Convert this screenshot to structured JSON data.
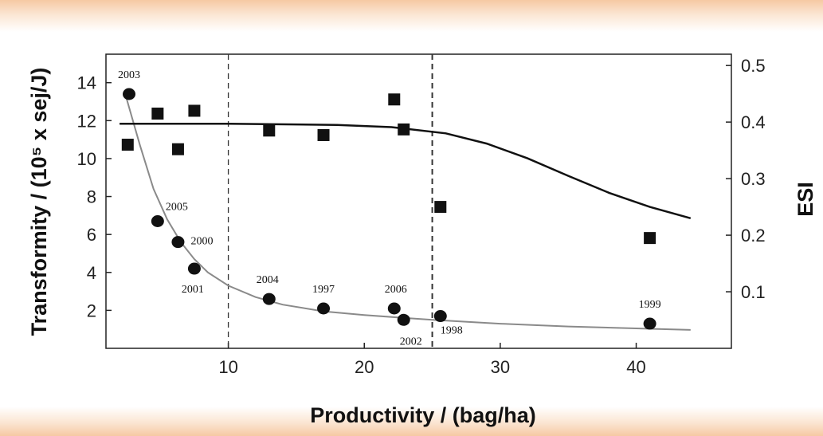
{
  "chart_data": {
    "type": "scatter",
    "xlabel": "Productivity / (bag/ha)",
    "ylabel_left": "Transformity / (10⁵ x sej/J)",
    "ylabel_right": "ESI",
    "x_ticks": [
      10,
      20,
      30,
      40
    ],
    "y_left_ticks": [
      2,
      4,
      6,
      8,
      10,
      12,
      14
    ],
    "y_right_ticks": [
      0.1,
      0.2,
      0.3,
      0.4,
      0.5
    ],
    "xlim": [
      1,
      47
    ],
    "y_left_lim": [
      0,
      15.5
    ],
    "y_right_lim": [
      0,
      0.52
    ],
    "vertical_dashed_lines": [
      10,
      25
    ],
    "grid": false,
    "series": [
      {
        "marker": "circle",
        "axis": "left",
        "points": [
          {
            "x": 2.7,
            "y": 13.4,
            "label": "2003"
          },
          {
            "x": 4.8,
            "y": 6.7,
            "label": "2005"
          },
          {
            "x": 6.3,
            "y": 5.6,
            "label": "2000"
          },
          {
            "x": 7.5,
            "y": 4.2,
            "label": "2001"
          },
          {
            "x": 13.0,
            "y": 2.6,
            "label": "2004"
          },
          {
            "x": 17.0,
            "y": 2.1,
            "label": "1997"
          },
          {
            "x": 22.2,
            "y": 2.1,
            "label": "2006"
          },
          {
            "x": 22.9,
            "y": 1.5,
            "label": "2002"
          },
          {
            "x": 25.6,
            "y": 1.7,
            "label": "1998"
          },
          {
            "x": 41.0,
            "y": 1.3,
            "label": "1999"
          }
        ]
      },
      {
        "marker": "square",
        "axis": "right",
        "points": [
          {
            "x": 2.6,
            "y": 0.36
          },
          {
            "x": 4.8,
            "y": 0.415
          },
          {
            "x": 6.3,
            "y": 0.352
          },
          {
            "x": 7.5,
            "y": 0.42
          },
          {
            "x": 13.0,
            "y": 0.385
          },
          {
            "x": 17.0,
            "y": 0.377
          },
          {
            "x": 22.2,
            "y": 0.44
          },
          {
            "x": 22.9,
            "y": 0.387
          },
          {
            "x": 25.6,
            "y": 0.25
          },
          {
            "x": 41.0,
            "y": 0.195
          }
        ]
      }
    ],
    "fit_curves": [
      {
        "axis": "left",
        "color": "#8a8a8a",
        "points": [
          [
            2.5,
            13.2
          ],
          [
            3.5,
            10.7
          ],
          [
            4.5,
            8.4
          ],
          [
            5.5,
            6.8
          ],
          [
            6.5,
            5.6
          ],
          [
            7.5,
            4.7
          ],
          [
            8.5,
            4.0
          ],
          [
            10,
            3.3
          ],
          [
            12,
            2.7
          ],
          [
            14,
            2.3
          ],
          [
            17,
            1.95
          ],
          [
            20,
            1.75
          ],
          [
            25,
            1.5
          ],
          [
            30,
            1.3
          ],
          [
            35,
            1.15
          ],
          [
            40,
            1.05
          ],
          [
            44,
            0.97
          ]
        ]
      },
      {
        "axis": "right",
        "color": "#111111",
        "points": [
          [
            2,
            0.397
          ],
          [
            10,
            0.397
          ],
          [
            18,
            0.395
          ],
          [
            22,
            0.391
          ],
          [
            26,
            0.38
          ],
          [
            29,
            0.362
          ],
          [
            32,
            0.336
          ],
          [
            35,
            0.305
          ],
          [
            38,
            0.275
          ],
          [
            41,
            0.25
          ],
          [
            44,
            0.23
          ]
        ]
      }
    ]
  }
}
